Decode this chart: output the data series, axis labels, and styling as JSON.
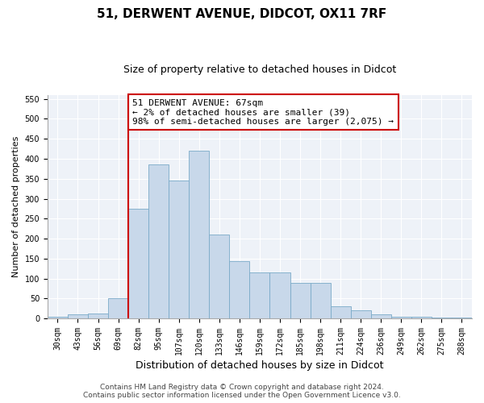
{
  "title": "51, DERWENT AVENUE, DIDCOT, OX11 7RF",
  "subtitle": "Size of property relative to detached houses in Didcot",
  "xlabel": "Distribution of detached houses by size in Didcot",
  "ylabel": "Number of detached properties",
  "categories": [
    "30sqm",
    "43sqm",
    "56sqm",
    "69sqm",
    "82sqm",
    "95sqm",
    "107sqm",
    "120sqm",
    "133sqm",
    "146sqm",
    "159sqm",
    "172sqm",
    "185sqm",
    "198sqm",
    "211sqm",
    "224sqm",
    "236sqm",
    "249sqm",
    "262sqm",
    "275sqm",
    "288sqm"
  ],
  "values": [
    5,
    10,
    13,
    50,
    275,
    385,
    345,
    420,
    210,
    143,
    115,
    115,
    90,
    90,
    30,
    20,
    10,
    5,
    5,
    3,
    2
  ],
  "bar_color": "#c8d8ea",
  "bar_edge_color": "#7aaac8",
  "vline_x": 3.5,
  "vline_color": "#cc0000",
  "annotation_text": "51 DERWENT AVENUE: 67sqm\n← 2% of detached houses are smaller (39)\n98% of semi-detached houses are larger (2,075) →",
  "annotation_box_color": "#cc0000",
  "ylim": [
    0,
    560
  ],
  "yticks": [
    0,
    50,
    100,
    150,
    200,
    250,
    300,
    350,
    400,
    450,
    500,
    550
  ],
  "footer": "Contains HM Land Registry data © Crown copyright and database right 2024.\nContains public sector information licensed under the Open Government Licence v3.0.",
  "bg_color": "#eef2f8",
  "grid_color": "#ffffff",
  "title_fontsize": 11,
  "subtitle_fontsize": 9,
  "xlabel_fontsize": 9,
  "ylabel_fontsize": 8,
  "tick_fontsize": 7,
  "annotation_fontsize": 8,
  "footer_fontsize": 6.5
}
